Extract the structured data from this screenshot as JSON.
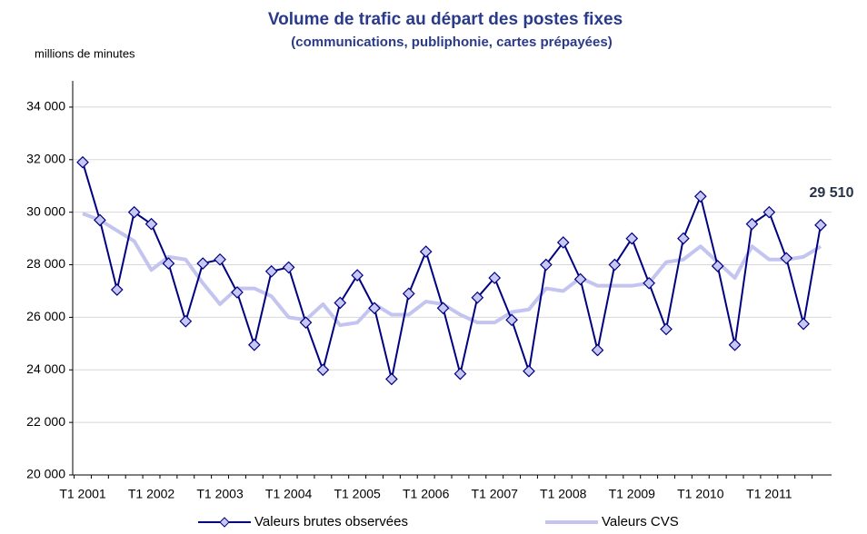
{
  "chart_data": {
    "type": "line",
    "title": "Volume de trafic au départ des postes fixes",
    "subtitle": "(communications, publiphonie, cartes prépayées)",
    "y_axis_label": "millions de minutes",
    "categories": [
      "T1 2001",
      null,
      null,
      null,
      "T1 2002",
      null,
      null,
      null,
      "T1 2003",
      null,
      null,
      null,
      "T1 2004",
      null,
      null,
      null,
      "T1 2005",
      null,
      null,
      null,
      "T1 2006",
      null,
      null,
      null,
      "T1 2007",
      null,
      null,
      null,
      "T1 2008",
      null,
      null,
      null,
      "T1 2009",
      null,
      null,
      null,
      "T1 2010",
      null,
      null,
      null,
      "T1 2011",
      null,
      null,
      null
    ],
    "series": [
      {
        "name": "Valeurs brutes observées",
        "color": "#000080",
        "marker_fill": "#c8c8f4",
        "values": [
          31900,
          29700,
          27050,
          30000,
          29550,
          28050,
          25850,
          28050,
          28200,
          26950,
          24950,
          27750,
          27900,
          25800,
          24000,
          26550,
          27600,
          26350,
          23650,
          26900,
          28500,
          26350,
          23850,
          26750,
          27500,
          25900,
          23950,
          28000,
          28850,
          27450,
          24750,
          28000,
          29000,
          27300,
          25550,
          29000,
          30600,
          27950,
          24950,
          29550,
          30000,
          28250,
          25750,
          29510
        ],
        "value_labels": [
          null,
          null,
          null,
          null,
          null,
          null,
          null,
          null,
          null,
          null,
          null,
          null,
          null,
          null,
          null,
          null,
          null,
          null,
          null,
          null,
          null,
          null,
          null,
          null,
          null,
          null,
          null,
          null,
          null,
          null,
          null,
          null,
          null,
          null,
          null,
          null,
          null,
          null,
          null,
          null,
          null,
          null,
          null,
          "29 510"
        ]
      },
      {
        "name": "Valeurs CVS",
        "color": "#c4c4f0",
        "values": [
          29950,
          29700,
          29300,
          28900,
          27800,
          28300,
          28200,
          27300,
          26500,
          27100,
          27100,
          26800,
          26000,
          25900,
          26500,
          25700,
          25800,
          26500,
          26100,
          26100,
          26600,
          26500,
          26100,
          25800,
          25800,
          26200,
          26300,
          27100,
          27000,
          27500,
          27200,
          27200,
          27200,
          27300,
          28100,
          28200,
          28700,
          28100,
          27500,
          28700,
          28200,
          28200,
          28300,
          28700
        ]
      }
    ],
    "ylim": [
      20000,
      35000
    ],
    "yticks": [
      {
        "value": 20000,
        "label": "20 000"
      },
      {
        "value": 22000,
        "label": "22 000"
      },
      {
        "value": 24000,
        "label": "24 000"
      },
      {
        "value": 26000,
        "label": "26 000"
      },
      {
        "value": 28000,
        "label": "28 000"
      },
      {
        "value": 30000,
        "label": "30 000"
      },
      {
        "value": 32000,
        "label": "32 000"
      },
      {
        "value": 34000,
        "label": "34 000"
      }
    ],
    "grid": true,
    "legend": "bottom"
  }
}
